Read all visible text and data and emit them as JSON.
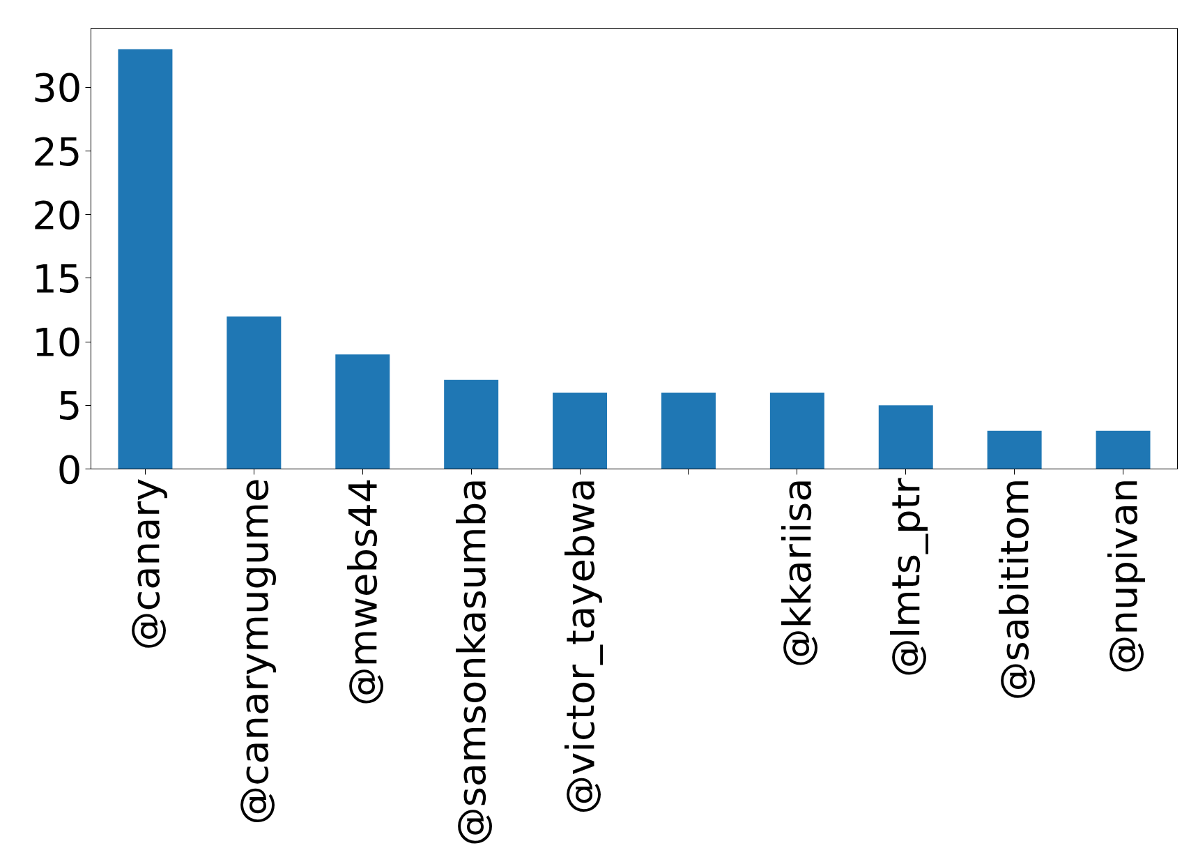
{
  "chart_data": {
    "type": "bar",
    "categories": [
      "@canary",
      "@canarymugume",
      "@mwebs44",
      "@samsonkasumba",
      "@victor_tayebwa",
      null,
      "@kkariisa",
      "@lmts_ptr",
      "@sabititom",
      "@nupivan"
    ],
    "values": [
      33,
      12,
      9,
      7,
      6,
      6,
      6,
      5,
      3,
      3
    ],
    "color": "#1f77b4",
    "ylim": [
      0,
      34.65
    ],
    "yticks": [
      0,
      5,
      10,
      15,
      20,
      25,
      30
    ],
    "grid": false
  }
}
